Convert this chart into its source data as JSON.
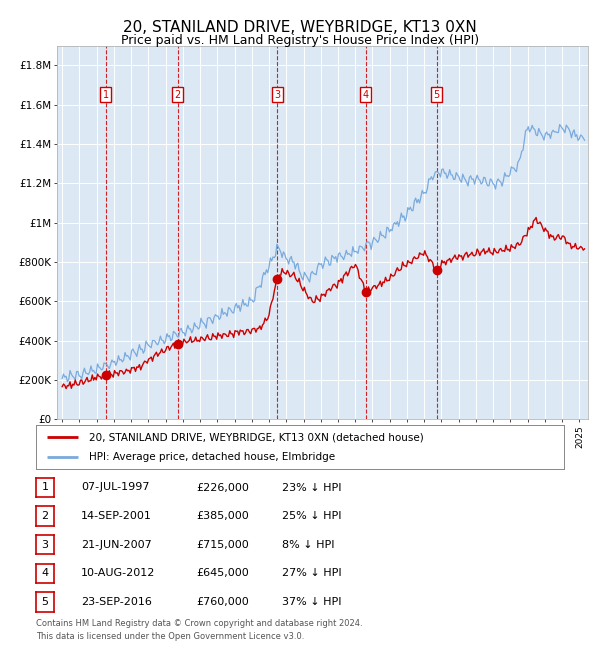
{
  "title": "20, STANILAND DRIVE, WEYBRIDGE, KT13 0XN",
  "subtitle": "Price paid vs. HM Land Registry's House Price Index (HPI)",
  "title_fontsize": 11,
  "subtitle_fontsize": 9,
  "background_color": "#ffffff",
  "plot_bg_color": "#dce9f5",
  "grid_color": "#ffffff",
  "red_line_color": "#cc0000",
  "blue_line_color": "#7aaadd",
  "sale_marker_color": "#cc0000",
  "sale_dates_decimal": [
    1997.52,
    2001.71,
    2007.47,
    2012.61,
    2016.73
  ],
  "sale_prices": [
    226000,
    385000,
    715000,
    645000,
    760000
  ],
  "sale_labels": [
    "1",
    "2",
    "3",
    "4",
    "5"
  ],
  "sale_dates_str": [
    "07-JUL-1997",
    "14-SEP-2001",
    "21-JUN-2007",
    "10-AUG-2012",
    "23-SEP-2016"
  ],
  "sale_pct": [
    "23%",
    "25%",
    "8%",
    "27%",
    "37%"
  ],
  "legend_line1": "20, STANILAND DRIVE, WEYBRIDGE, KT13 0XN (detached house)",
  "legend_line2": "HPI: Average price, detached house, Elmbridge",
  "footer_line1": "Contains HM Land Registry data © Crown copyright and database right 2024.",
  "footer_line2": "This data is licensed under the Open Government Licence v3.0.",
  "ylim": [
    0,
    1900000
  ],
  "yticks": [
    0,
    200000,
    400000,
    600000,
    800000,
    1000000,
    1200000,
    1400000,
    1600000,
    1800000
  ],
  "ytick_labels": [
    "£0",
    "£200K",
    "£400K",
    "£600K",
    "£800K",
    "£1M",
    "£1.2M",
    "£1.4M",
    "£1.6M",
    "£1.8M"
  ],
  "xlim_start": 1994.7,
  "xlim_end": 2025.5,
  "xtick_years": [
    1995,
    1996,
    1997,
    1998,
    1999,
    2000,
    2001,
    2002,
    2003,
    2004,
    2005,
    2006,
    2007,
    2008,
    2009,
    2010,
    2011,
    2012,
    2013,
    2014,
    2015,
    2016,
    2017,
    2018,
    2019,
    2020,
    2021,
    2022,
    2023,
    2024,
    2025
  ]
}
